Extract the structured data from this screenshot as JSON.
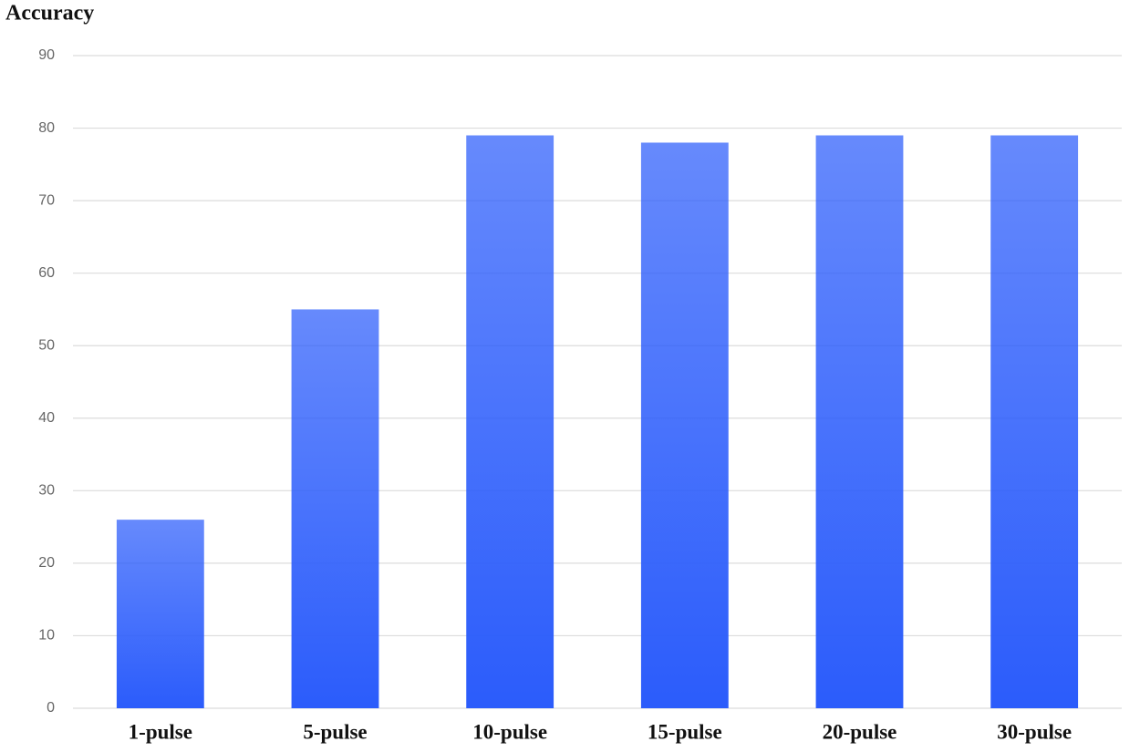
{
  "chart_data": {
    "type": "bar",
    "title": "Accuracy",
    "categories": [
      "1-pulse",
      "5-pulse",
      "10-pulse",
      "15-pulse",
      "20-pulse",
      "30-pulse"
    ],
    "values": [
      26,
      55,
      79,
      78,
      79,
      79
    ],
    "color": "#2b5cfb",
    "ylim": [
      0,
      90
    ],
    "yticks": [
      0,
      10,
      20,
      30,
      40,
      50,
      60,
      70,
      80,
      90
    ],
    "grid": true
  }
}
